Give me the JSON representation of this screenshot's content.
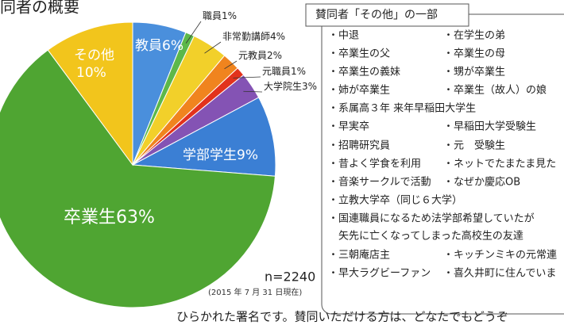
{
  "chart_data": {
    "type": "pie",
    "title": "同者の概要",
    "categories": [
      "教員",
      "職員",
      "非常勤講師",
      "元教員",
      "元職員",
      "大学院生",
      "学部学生",
      "卒業生",
      "その他"
    ],
    "values": [
      6,
      1,
      4,
      2,
      1,
      3,
      9,
      63,
      10
    ],
    "value_labels": [
      "6%",
      "1%",
      "4%",
      "2%",
      "1%",
      "3%",
      "9%",
      "63%",
      "10%"
    ],
    "colors": [
      "#4a8fdc",
      "#5cb84a",
      "#f2d02a",
      "#f0841e",
      "#e2321c",
      "#8453b4",
      "#3b7fd4",
      "#4fa532",
      "#f2c51c"
    ],
    "note": "n=2240",
    "date": "(2015 年 7 月 31 日現在)"
  },
  "box": {
    "title": "賛同者「その他」の一部",
    "rows": [
      [
        "・中退",
        "・在学生の弟"
      ],
      [
        "・卒業生の父",
        "・卒業生の母"
      ],
      [
        "・卒業生の義妹",
        "・甥が卒業生"
      ],
      [
        "・姉が卒業生",
        "・卒業生（故人）の娘"
      ],
      [
        "・系属高３年 来年早稲田大学生"
      ],
      [
        "・早実卒",
        "・早稲田大学受験生"
      ],
      [
        "・招聘研究員",
        "・元　受験生"
      ],
      [
        "・昔よく学食を利用",
        "・ネットでたまたま見た"
      ],
      [
        "・音楽サークルで活動",
        "・なぜか慶応OB"
      ],
      [
        "・立教大学卒（同じ６大学）"
      ],
      [
        "・国連職員になるため法学部希望していたが"
      ],
      [
        "　矢先に亡くなってしまった高校生の友達"
      ],
      [
        "・三朝庵店主",
        "・キッチンミキの元常連"
      ],
      [
        "・早大ラグビーファン",
        "・喜久井町に住んでいま"
      ]
    ]
  },
  "footer": "ひらかれた署名です。賛同いただける方は、どなたでもどうぞ"
}
